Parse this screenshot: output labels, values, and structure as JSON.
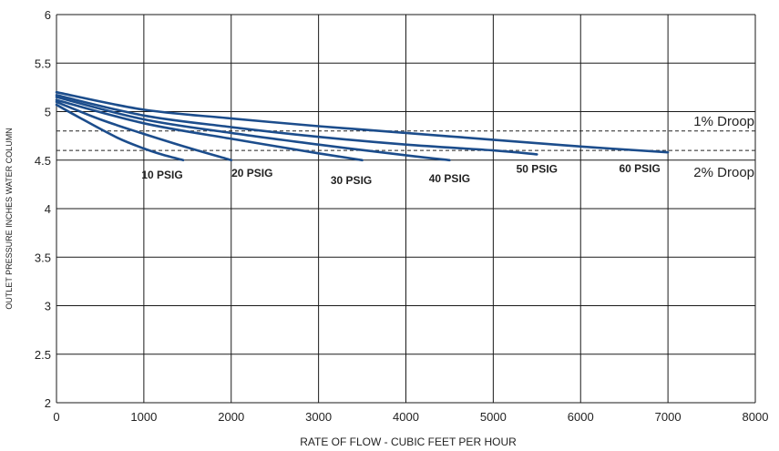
{
  "chart_data": {
    "type": "line",
    "xlabel": "RATE OF FLOW - CUBIC FEET PER HOUR",
    "ylabel": "OUTLET PRESSURE INCHES WATER COLUMN",
    "xlim": [
      0,
      8000
    ],
    "ylim": [
      2,
      6
    ],
    "x_ticks": [
      "0",
      "1000",
      "2000",
      "3000",
      "4000",
      "5000",
      "6000",
      "7000",
      "8000"
    ],
    "y_ticks": [
      "2",
      "2.5",
      "3",
      "3.5",
      "4",
      "4.5",
      "5",
      "5.5",
      "6"
    ],
    "grid": true,
    "series": [
      {
        "name": "10 PSIG",
        "x": [
          0,
          300,
          700,
          1000,
          1200,
          1450
        ],
        "y": [
          5.07,
          4.92,
          4.73,
          4.62,
          4.56,
          4.5
        ]
      },
      {
        "name": "20 PSIG",
        "x": [
          0,
          500,
          1000,
          1500,
          2000
        ],
        "y": [
          5.1,
          4.92,
          4.77,
          4.63,
          4.5
        ]
      },
      {
        "name": "30 PSIG",
        "x": [
          0,
          1000,
          2000,
          3000,
          3500
        ],
        "y": [
          5.12,
          4.88,
          4.72,
          4.57,
          4.5
        ]
      },
      {
        "name": "40 PSIG",
        "x": [
          0,
          1000,
          2000,
          3000,
          4000,
          4500
        ],
        "y": [
          5.15,
          4.92,
          4.78,
          4.66,
          4.55,
          4.5
        ]
      },
      {
        "name": "50 PSIG",
        "x": [
          0,
          1000,
          2000,
          3000,
          4000,
          5000,
          5500
        ],
        "y": [
          5.17,
          4.96,
          4.84,
          4.74,
          4.66,
          4.6,
          4.56
        ]
      },
      {
        "name": "60 PSIG",
        "x": [
          0,
          1000,
          2000,
          3000,
          4000,
          5000,
          6000,
          7000
        ],
        "y": [
          5.2,
          5.02,
          4.93,
          4.85,
          4.78,
          4.71,
          4.64,
          4.58
        ]
      }
    ],
    "reference_lines": [
      {
        "label": "1% Droop",
        "y": 4.8
      },
      {
        "label": "2% Droop",
        "y": 4.6
      }
    ]
  }
}
